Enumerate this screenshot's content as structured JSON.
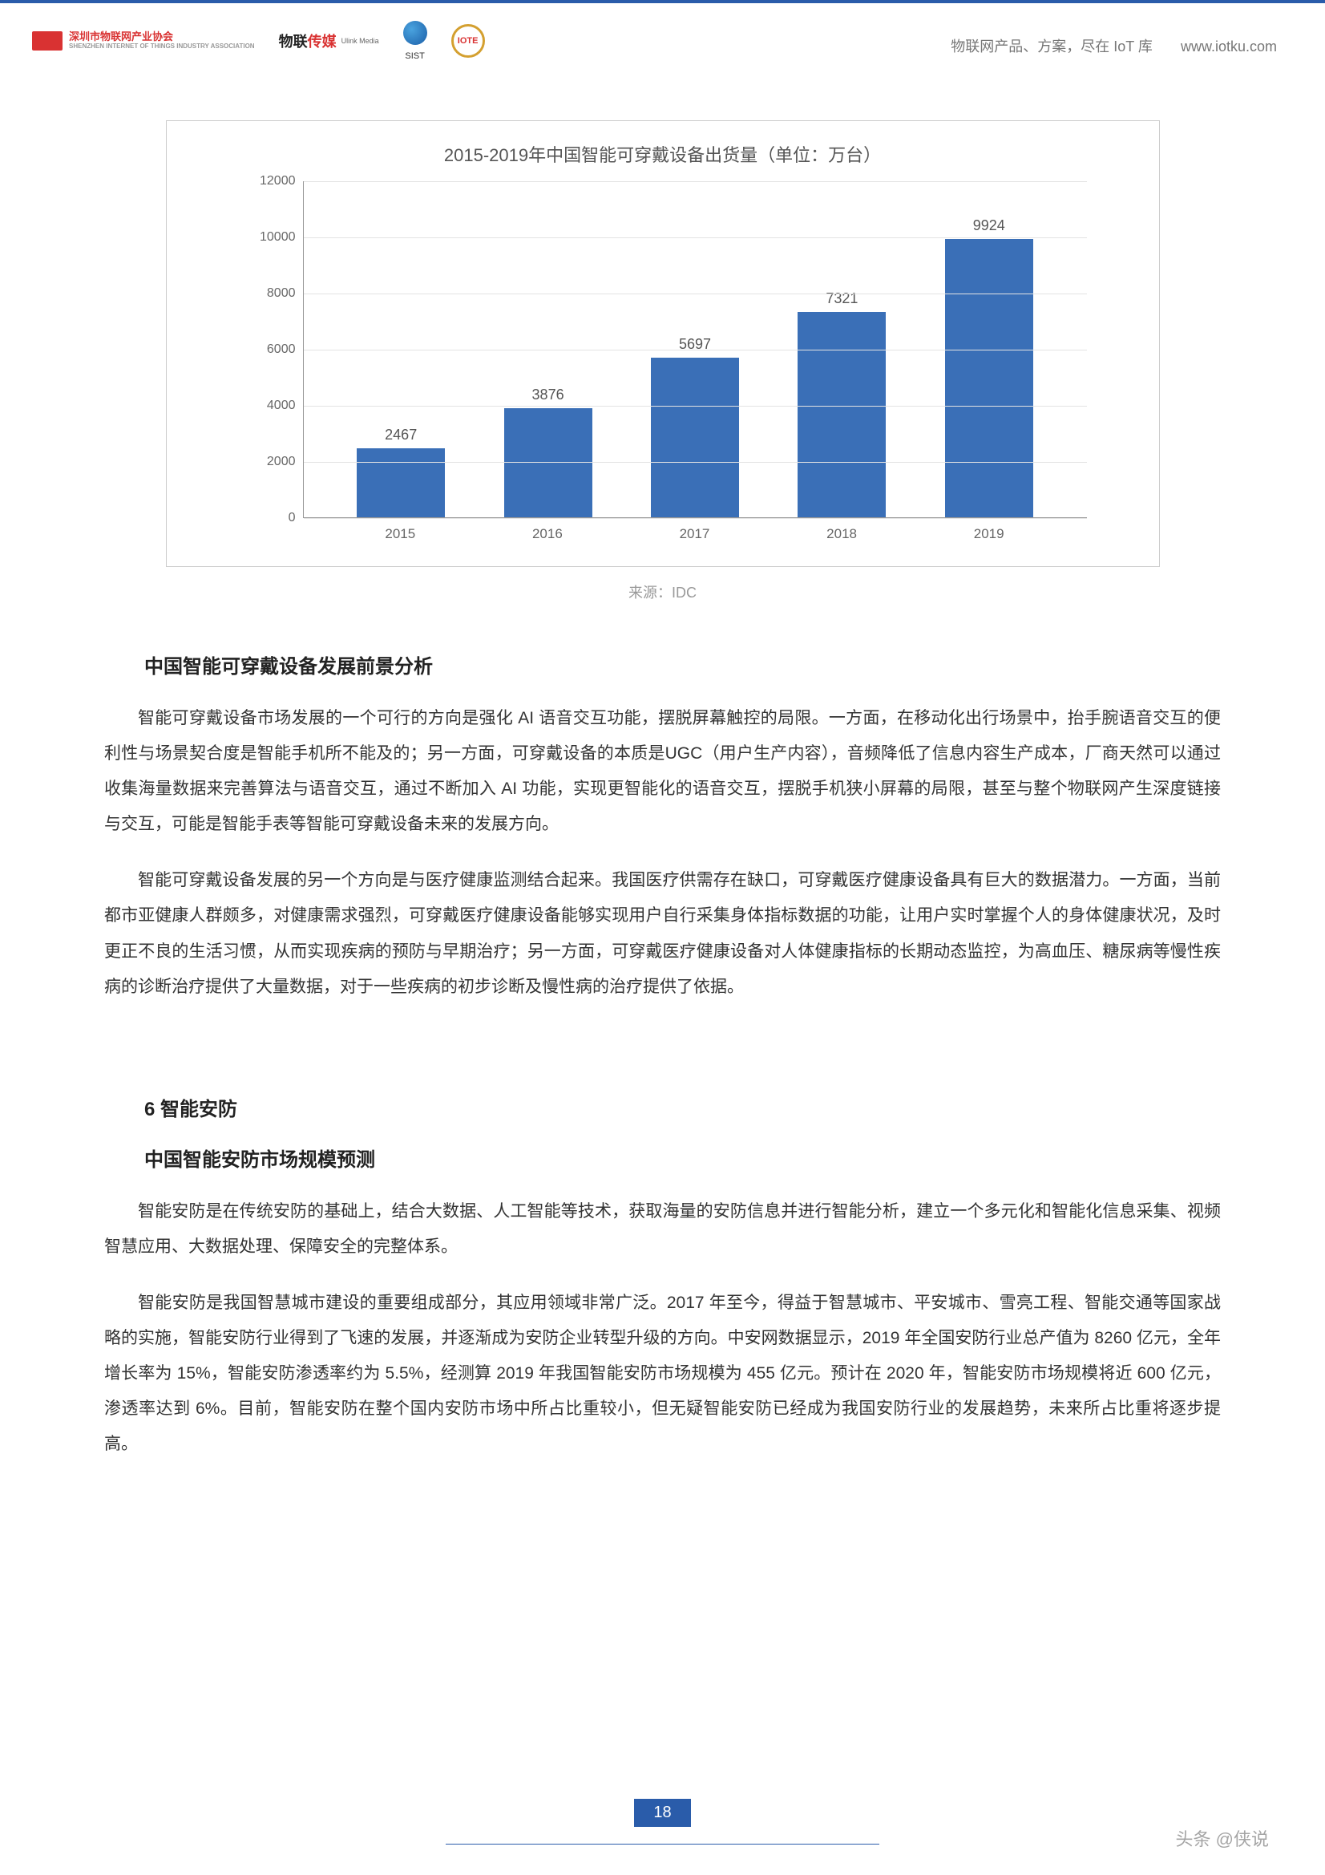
{
  "header": {
    "logos": {
      "sziot_cn": "深圳市物联网产业协会",
      "sziot_en": "SHENZHEN INTERNET OF THINGS INDUSTRY ASSOCIATION",
      "ulink_cn_a": "物联",
      "ulink_cn_b": "传媒",
      "ulink_en": "Ulink Media",
      "sist": "SIST",
      "iote": "IOTE"
    },
    "right_text": "物联网产品、方案，尽在 IoT 库",
    "right_link": "www.iotku.com"
  },
  "chart": {
    "type": "bar",
    "title": "2015-2019年中国智能可穿戴设备出货量（单位：万台）",
    "categories": [
      "2015",
      "2016",
      "2017",
      "2018",
      "2019"
    ],
    "values": [
      2467,
      3876,
      5697,
      7321,
      9924
    ],
    "ylim": [
      0,
      12000
    ],
    "ytick_step": 2000,
    "yticks": [
      0,
      2000,
      4000,
      6000,
      8000,
      10000,
      12000
    ],
    "bar_color": "#3a6fb7",
    "grid_color": "#e3e3e3",
    "axis_color": "#999999",
    "background_color": "#ffffff",
    "title_fontsize": 22,
    "label_fontsize": 17,
    "bar_width_ratio": 0.55,
    "source": "来源：IDC"
  },
  "section1": {
    "heading": "中国智能可穿戴设备发展前景分析",
    "p1": "智能可穿戴设备市场发展的一个可行的方向是强化 AI 语音交互功能，摆脱屏幕触控的局限。一方面，在移动化出行场景中，抬手腕语音交互的便利性与场景契合度是智能手机所不能及的；另一方面，可穿戴设备的本质是UGC（用户生产内容），音频降低了信息内容生产成本，厂商天然可以通过收集海量数据来完善算法与语音交互，通过不断加入 AI 功能，实现更智能化的语音交互，摆脱手机狭小屏幕的局限，甚至与整个物联网产生深度链接与交互，可能是智能手表等智能可穿戴设备未来的发展方向。",
    "p2": "智能可穿戴设备发展的另一个方向是与医疗健康监测结合起来。我国医疗供需存在缺口，可穿戴医疗健康设备具有巨大的数据潜力。一方面，当前都市亚健康人群颇多，对健康需求强烈，可穿戴医疗健康设备能够实现用户自行采集身体指标数据的功能，让用户实时掌握个人的身体健康状况，及时更正不良的生活习惯，从而实现疾病的预防与早期治疗；另一方面，可穿戴医疗健康设备对人体健康指标的长期动态监控，为高血压、糖尿病等慢性疾病的诊断治疗提供了大量数据，对于一些疾病的初步诊断及慢性病的治疗提供了依据。"
  },
  "section2": {
    "num_title": "6 智能安防",
    "heading": "中国智能安防市场规模预测",
    "p1": "智能安防是在传统安防的基础上，结合大数据、人工智能等技术，获取海量的安防信息并进行智能分析，建立一个多元化和智能化信息采集、视频智慧应用、大数据处理、保障安全的完整体系。",
    "p2": "智能安防是我国智慧城市建设的重要组成部分，其应用领域非常广泛。2017 年至今，得益于智慧城市、平安城市、雪亮工程、智能交通等国家战略的实施，智能安防行业得到了飞速的发展，并逐渐成为安防企业转型升级的方向。中安网数据显示，2019 年全国安防行业总产值为 8260 亿元，全年增长率为 15%，智能安防渗透率约为 5.5%，经测算 2019 年我国智能安防市场规模为 455 亿元。预计在 2020 年，智能安防市场规模将近 600 亿元，渗透率达到 6%。目前，智能安防在整个国内安防市场中所占比重较小，但无疑智能安防已经成为我国安防行业的发展趋势，未来所占比重将逐步提高。"
  },
  "footer": {
    "page": "18",
    "watermark": "头条 @侠说"
  }
}
